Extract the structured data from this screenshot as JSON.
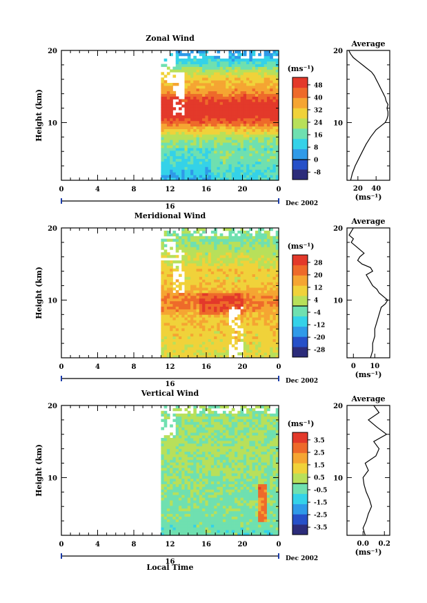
{
  "figure": {
    "time_unit_label": "Local Time",
    "month_label": "Dec 2002",
    "day_label": "16",
    "time_ticks": [
      "0",
      "4",
      "8",
      "12",
      "16",
      "20",
      "0"
    ],
    "height_axis_label": "Height (km)",
    "unit_label": "(ms⁻¹)"
  },
  "chart_data": [
    {
      "id": "zonal",
      "type": "heatmap",
      "title": "Zonal Wind",
      "xlabel": "",
      "ylabel": "Height (km)",
      "x_range_hours": [
        0,
        24
      ],
      "data_start_hour": 11,
      "ylim": [
        2,
        20
      ],
      "y_ticks": [
        10,
        20
      ],
      "colorbar": {
        "levels": [
          -8,
          0,
          8,
          16,
          24,
          32,
          40,
          48
        ],
        "unit": "(ms⁻¹)",
        "zero_line": 0
      },
      "field_profile": [
        [
          2,
          8
        ],
        [
          4,
          12
        ],
        [
          6,
          16
        ],
        [
          8,
          22
        ],
        [
          9,
          30
        ],
        [
          10,
          40
        ],
        [
          11,
          46
        ],
        [
          12,
          48
        ],
        [
          13,
          44
        ],
        [
          14,
          38
        ],
        [
          15,
          32
        ],
        [
          16,
          30
        ],
        [
          17,
          24
        ],
        [
          18,
          16
        ],
        [
          19,
          10
        ],
        [
          20,
          6
        ]
      ],
      "average": {
        "title": "Average",
        "xlabel": "(ms⁻¹)",
        "x_ticks": [
          20,
          40
        ],
        "xlim": [
          8,
          55
        ],
        "height": [
          2,
          3,
          4,
          5,
          6,
          7,
          8,
          9,
          9.5,
          10,
          10.5,
          11,
          11.5,
          12,
          12.5,
          13,
          13.5,
          14,
          14.5,
          15,
          15.5,
          16,
          16.5,
          17,
          17.5,
          18,
          18.5,
          19,
          19.5,
          20
        ],
        "value": [
          12,
          14,
          17,
          21,
          25,
          29,
          34,
          40,
          45,
          50,
          52,
          53,
          53,
          52,
          53,
          51,
          50,
          48,
          46,
          44,
          42,
          40,
          38,
          35,
          30,
          25,
          20,
          15,
          12,
          10
        ]
      }
    },
    {
      "id": "meridional",
      "type": "heatmap",
      "title": "Meridional Wind",
      "xlabel": "",
      "ylabel": "Height (km)",
      "x_range_hours": [
        0,
        24
      ],
      "data_start_hour": 11,
      "ylim": [
        2,
        20
      ],
      "y_ticks": [
        10,
        20
      ],
      "colorbar": {
        "levels": [
          -28,
          -20,
          -12,
          -4,
          4,
          12,
          20,
          28
        ],
        "unit": "(ms⁻¹)",
        "zero_line": 0
      },
      "field_profile": [
        [
          2,
          6
        ],
        [
          4,
          8
        ],
        [
          6,
          9
        ],
        [
          8,
          12
        ],
        [
          9,
          16
        ],
        [
          10,
          18
        ],
        [
          11,
          14
        ],
        [
          12,
          10
        ],
        [
          13,
          8
        ],
        [
          14,
          10
        ],
        [
          15,
          6
        ],
        [
          16,
          4
        ],
        [
          17,
          2
        ],
        [
          18,
          0
        ],
        [
          19,
          -2
        ],
        [
          20,
          0
        ]
      ],
      "average": {
        "title": "Average",
        "xlabel": "(ms⁻¹)",
        "x_ticks": [
          0,
          10
        ],
        "xlim": [
          -3,
          17
        ],
        "height": [
          2,
          3,
          4,
          5,
          6,
          7,
          8,
          9,
          9.5,
          10,
          10.5,
          11,
          11.5,
          12,
          13,
          13.5,
          14,
          14.5,
          15,
          15.5,
          16,
          16.5,
          17,
          17.5,
          18,
          18.5,
          19,
          19.5,
          20
        ],
        "value": [
          8,
          9,
          9,
          10,
          10,
          11,
          12,
          13,
          15,
          16,
          14,
          12,
          11,
          9,
          7,
          6,
          9,
          8,
          4,
          2,
          3,
          5,
          3,
          1,
          -1,
          0,
          -2,
          -1,
          0
        ]
      }
    },
    {
      "id": "vertical",
      "type": "heatmap",
      "title": "Vertical Wind",
      "xlabel": "Local Time",
      "ylabel": "Height (km)",
      "x_range_hours": [
        0,
        24
      ],
      "data_start_hour": 11,
      "ylim": [
        2,
        20
      ],
      "y_ticks": [
        10,
        20
      ],
      "colorbar": {
        "levels": [
          -3.5,
          -2.5,
          -1.5,
          -0.5,
          0.5,
          1.5,
          2.5,
          3.5
        ],
        "unit": "(ms⁻¹)",
        "zero_line": 0
      },
      "field_profile": [
        [
          2,
          -0.4
        ],
        [
          4,
          -0.3
        ],
        [
          6,
          -0.2
        ],
        [
          8,
          -0.1
        ],
        [
          10,
          0.0
        ],
        [
          12,
          0.1
        ],
        [
          14,
          0.2
        ],
        [
          16,
          0.1
        ],
        [
          18,
          0.0
        ],
        [
          20,
          0.1
        ]
      ],
      "average": {
        "title": "Average",
        "xlabel": "(ms⁻¹)",
        "x_ticks": [
          "0.0",
          "0.2"
        ],
        "xlim": [
          -0.15,
          0.25
        ],
        "height": [
          2,
          3,
          4,
          5,
          6,
          7,
          8,
          9,
          10,
          11,
          12,
          13,
          14,
          15,
          16,
          17,
          18,
          19,
          20
        ],
        "value": [
          0.02,
          0.0,
          0.03,
          0.05,
          0.08,
          0.06,
          0.03,
          0.01,
          0.0,
          0.05,
          0.02,
          0.12,
          0.15,
          0.1,
          0.22,
          0.13,
          0.05,
          0.15,
          0.1
        ]
      }
    }
  ]
}
